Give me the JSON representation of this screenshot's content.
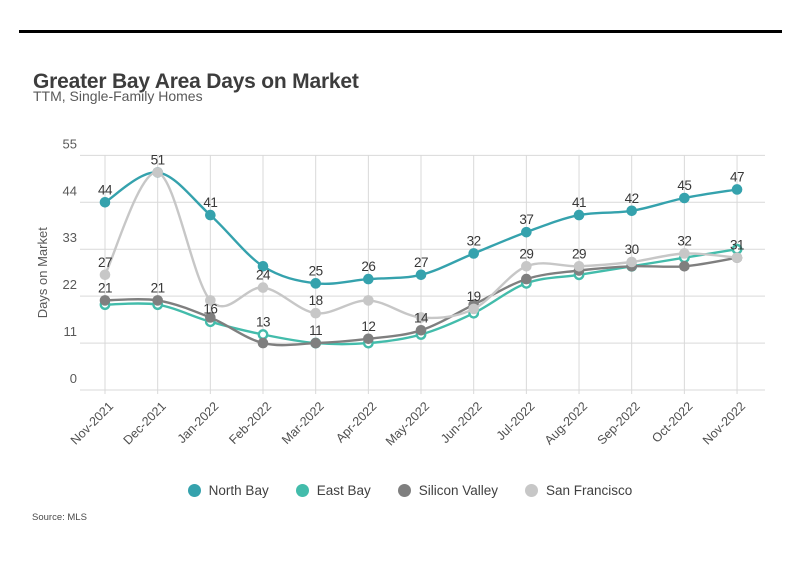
{
  "page": {
    "source_note": "Source:  MLS"
  },
  "chart_data": {
    "type": "line",
    "title": "Greater Bay Area Days on Market",
    "subtitle": "TTM, Single-Family Homes",
    "ylabel": "Days on Market",
    "ylim": [
      0,
      55
    ],
    "yticks": [
      0,
      11,
      22,
      33,
      44,
      55
    ],
    "grid": true,
    "legend_position": "bottom",
    "categories": [
      "Nov-2021",
      "Dec-2021",
      "Jan-2022",
      "Feb-2022",
      "Mar-2022",
      "Apr-2022",
      "May-2022",
      "Jun-2022",
      "Jul-2022",
      "Aug-2022",
      "Sep-2022",
      "Oct-2022",
      "Nov-2022"
    ],
    "series": [
      {
        "name": "North Bay",
        "color": "#35a2ad",
        "marker": "solid",
        "values": [
          44,
          51,
          41,
          29,
          25,
          26,
          27,
          32,
          37,
          41,
          42,
          45,
          47
        ],
        "labels": [
          44,
          null,
          41,
          null,
          25,
          26,
          27,
          32,
          37,
          41,
          42,
          45,
          47
        ]
      },
      {
        "name": "East Bay",
        "color": "#43bcab",
        "marker": "open",
        "values": [
          20,
          20,
          16,
          13,
          11,
          11,
          13,
          18,
          25,
          27,
          29,
          31,
          33
        ],
        "labels": [
          null,
          null,
          16,
          13,
          null,
          null,
          null,
          null,
          null,
          null,
          null,
          null,
          null
        ]
      },
      {
        "name": "Silicon Valley",
        "color": "#7f7f7f",
        "marker": "solid",
        "values": [
          21,
          21,
          17,
          11,
          11,
          12,
          14,
          20,
          26,
          28,
          29,
          29,
          31
        ],
        "labels": [
          21,
          21,
          null,
          null,
          11,
          12,
          14,
          null,
          null,
          null,
          null,
          null,
          null
        ]
      },
      {
        "name": "San Francisco",
        "color": "#c7c7c7",
        "marker": "solid",
        "values": [
          27,
          51,
          21,
          24,
          18,
          21,
          17,
          19,
          29,
          29,
          30,
          32,
          31
        ],
        "labels": [
          27,
          51,
          null,
          24,
          18,
          null,
          null,
          19,
          29,
          29,
          30,
          32,
          31
        ]
      }
    ]
  }
}
